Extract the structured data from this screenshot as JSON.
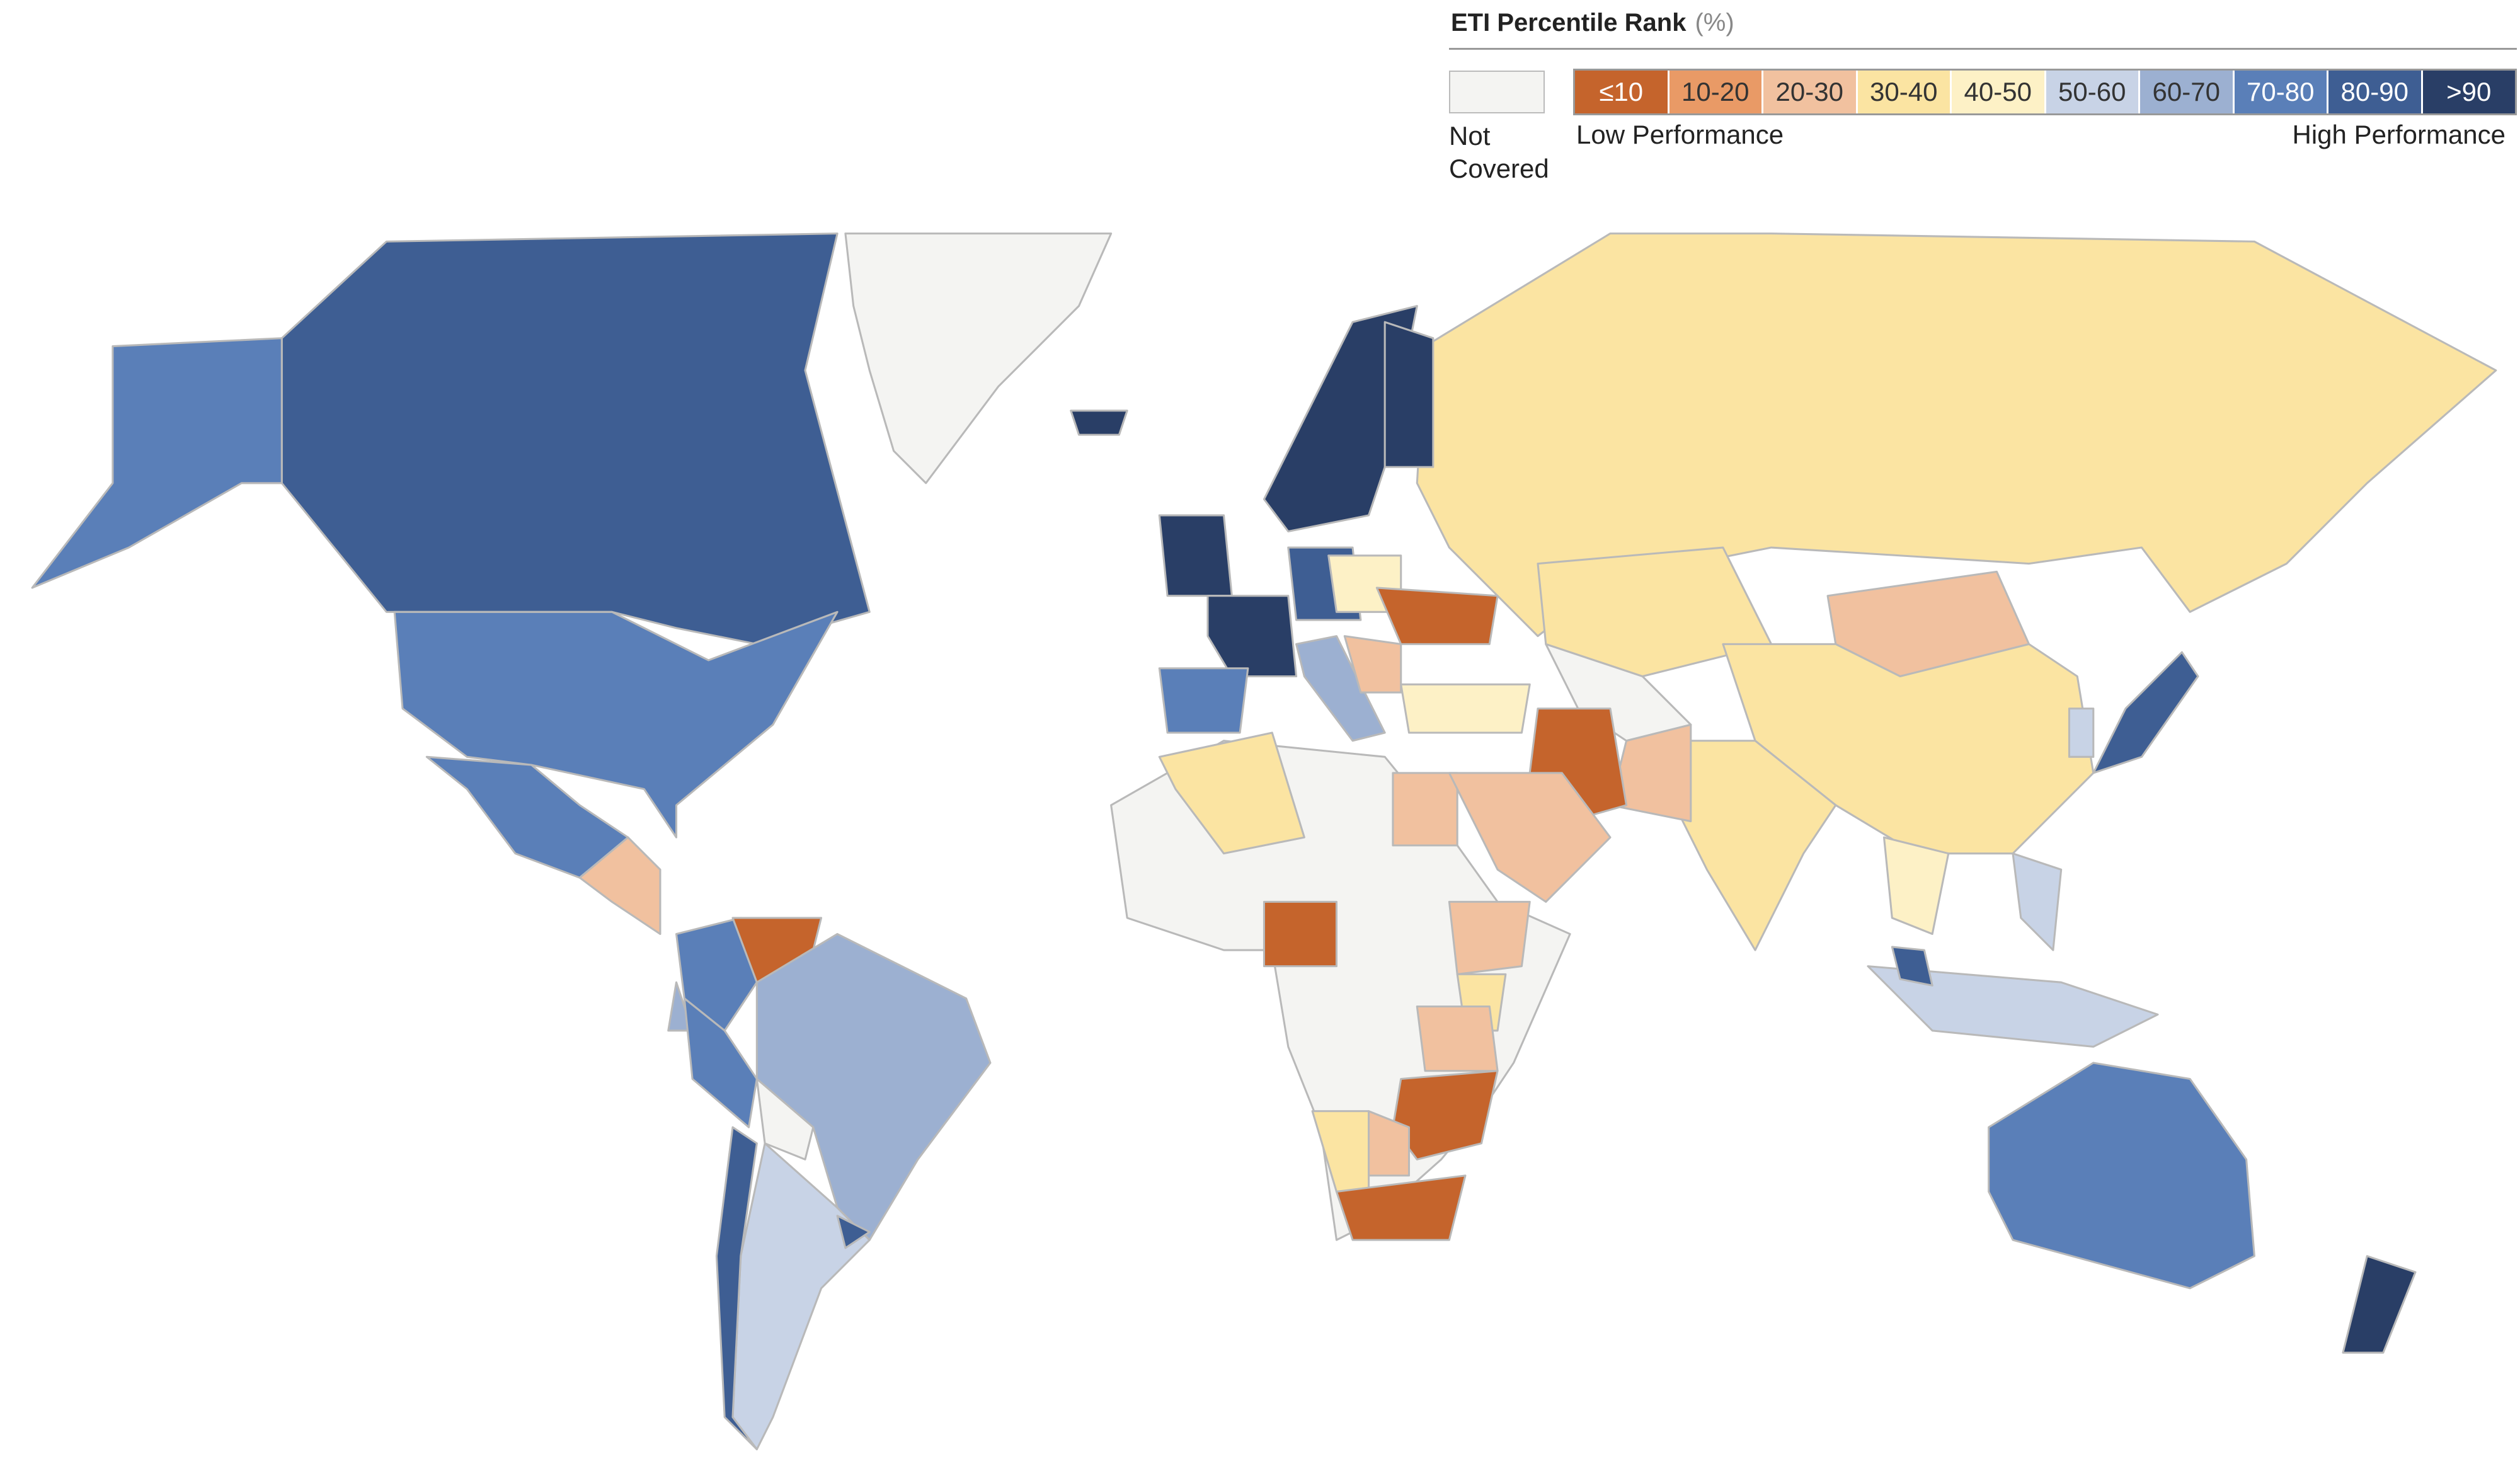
{
  "legend": {
    "title": "ETI Percentile Rank",
    "unit": "(%)",
    "not_covered": {
      "label": "Not Covered",
      "color": "#f4f4f2"
    },
    "classes": [
      {
        "label": "≤10",
        "color": "#c5642c"
      },
      {
        "label": "10-20",
        "color": "#e99a66"
      },
      {
        "label": "20-30",
        "color": "#f1c19f"
      },
      {
        "label": "30-40",
        "color": "#fbe4a2"
      },
      {
        "label": "40-50",
        "color": "#fdf1c6"
      },
      {
        "label": "50-60",
        "color": "#c8d3e6"
      },
      {
        "label": "60-70",
        "color": "#9cb0d1"
      },
      {
        "label": "70-80",
        "color": "#5a7fb8"
      },
      {
        "label": "80-90",
        "color": "#3e5e93"
      },
      {
        "label": ">90",
        "color": "#293e66"
      }
    ],
    "low_label": "Low Performance",
    "high_label": "High Performance"
  }
}
